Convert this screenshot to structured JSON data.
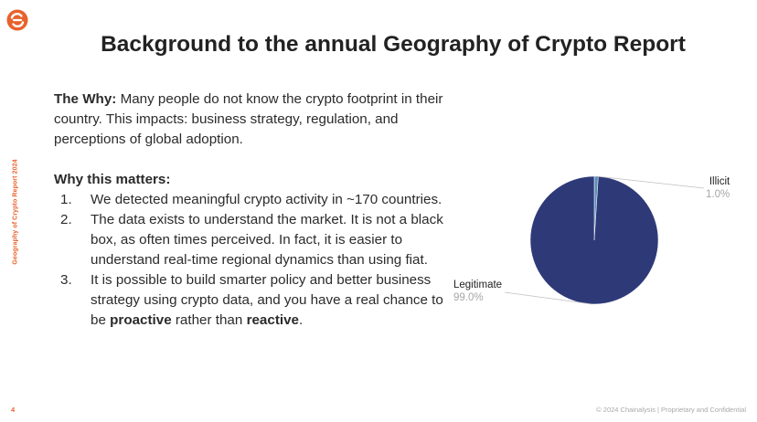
{
  "brand": {
    "accent": "#e8622c",
    "logo_icon": "chainalysis-logo-icon"
  },
  "side_label": "Geography of Crypto Report 2024",
  "title": "Background to the annual Geography of Crypto Report",
  "why": {
    "label": "The Why:",
    "text": " Many people do not know the crypto footprint in their country. This impacts: business strategy, regulation, and perceptions of global adoption."
  },
  "matters": {
    "heading": "Why this matters:",
    "points": [
      {
        "num": "1.",
        "text": "We detected meaningful crypto activity in ~170 countries."
      },
      {
        "num": "2.",
        "text": "The data exists to understand the market. It is not a black box, as often times perceived. In fact, it is easier to understand real-time regional dynamics than using fiat."
      },
      {
        "num": "3.",
        "text_before": "It is possible to build smarter policy and  better business strategy using crypto data, and you have a real chance to be ",
        "bold1": "proactive",
        "text_mid": " rather than ",
        "bold2": "reactive",
        "text_after": "."
      }
    ]
  },
  "chart_data": {
    "type": "pie",
    "slices": [
      {
        "name": "Illicit",
        "value": 1.0,
        "label": "1.0%",
        "color": "#5b8fb9"
      },
      {
        "name": "Legitimate",
        "value": 99.0,
        "label": "99.0%",
        "color": "#2e3a78"
      }
    ]
  },
  "footer": {
    "page_number": "4",
    "text": "© 2024 Chainalysis  |  Proprietary and Confidential"
  }
}
